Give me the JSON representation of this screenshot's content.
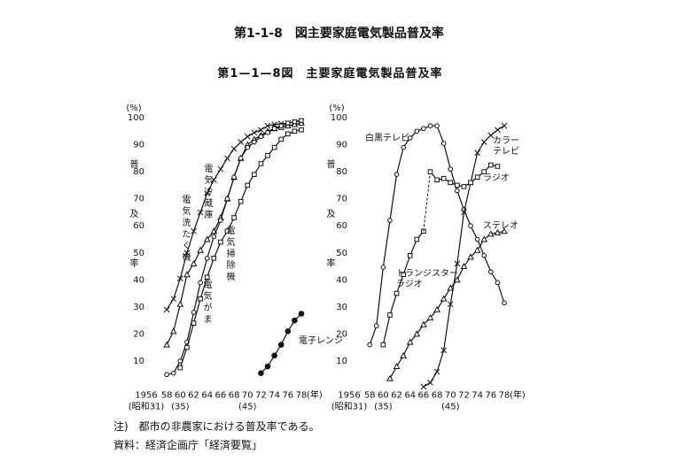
{
  "title": "第1-1-8　図主要家庭電気製品普及率",
  "figure_title": "第1—1—8図　主要家庭電気製品普及率",
  "chart_data": [
    {
      "type": "line",
      "xlim": [
        1956,
        1978
      ],
      "ylim": [
        0,
        100
      ],
      "yticks": [
        10,
        20,
        30,
        40,
        50,
        60,
        70,
        80,
        90,
        100
      ],
      "y_unit": "(%)",
      "y_label": "普及率",
      "xticks": [
        1956,
        {
          "value": 1958,
          "label": "58"
        },
        {
          "value": 1960,
          "label": "60"
        },
        {
          "value": 1962,
          "label": "62"
        },
        {
          "value": 1964,
          "label": "64"
        },
        {
          "value": 1966,
          "label": "66"
        },
        {
          "value": 1968,
          "label": "68"
        },
        {
          "value": 1970,
          "label": "70"
        },
        {
          "value": 1972,
          "label": "72"
        },
        {
          "value": 1974,
          "label": "74"
        },
        {
          "value": 1976,
          "label": "76"
        },
        {
          "value": 1978,
          "label": "78"
        }
      ],
      "x_unit": "(年)",
      "x_era_labels": [
        {
          "value": 1956,
          "label": "(昭和31)"
        },
        {
          "value": 1960,
          "label": "(35)"
        },
        {
          "value": 1970,
          "label": "(45)"
        }
      ],
      "series": [
        {
          "name": "電気洗たく機",
          "marker": "x",
          "color": "#111",
          "x": [
            1958,
            1959,
            1960,
            1961,
            1962,
            1963,
            1964,
            1965,
            1966,
            1967,
            1968,
            1969,
            1970,
            1971,
            1972,
            1973,
            1974,
            1975,
            1976,
            1977,
            1978
          ],
          "values": [
            29,
            33,
            40.5,
            50,
            58,
            65,
            72,
            77,
            81,
            85,
            88.5,
            91,
            93,
            94.5,
            95.5,
            97,
            97.5,
            97.8,
            98,
            98.4,
            98.8
          ]
        },
        {
          "name": "電気がま",
          "marker": "triangle",
          "color": "#111",
          "x": [
            1958,
            1959,
            1960,
            1961,
            1962,
            1963,
            1964,
            1965,
            1966,
            1967,
            1968,
            1969,
            1970,
            1971,
            1972,
            1973,
            1974,
            1975,
            1976,
            1977,
            1978
          ],
          "values": [
            16,
            21,
            31,
            42,
            46,
            51,
            55,
            58,
            63,
            70,
            78,
            85,
            90,
            92,
            93.5,
            95,
            96,
            96.5,
            97,
            97.5,
            98
          ]
        },
        {
          "name": "電気冷蔵庫",
          "marker": "circle",
          "color": "#111",
          "x": [
            1958,
            1959,
            1960,
            1961,
            1962,
            1963,
            1964,
            1965,
            1966,
            1967,
            1968,
            1969,
            1970,
            1971,
            1972,
            1973,
            1974,
            1975,
            1976,
            1977,
            1978
          ],
          "values": [
            5,
            5.5,
            10,
            17,
            28,
            39,
            48,
            56,
            62,
            70,
            78,
            85,
            89,
            91,
            93,
            94.5,
            96,
            97,
            98,
            98.5,
            99
          ]
        },
        {
          "name": "電気掃除機",
          "marker": "square",
          "color": "#111",
          "x": [
            1960,
            1961,
            1962,
            1963,
            1964,
            1965,
            1966,
            1967,
            1968,
            1969,
            1970,
            1971,
            1972,
            1973,
            1974,
            1975,
            1976,
            1977,
            1978
          ],
          "values": [
            7.5,
            15,
            24,
            33,
            41,
            48,
            54,
            58,
            63,
            69,
            75,
            79,
            83,
            86,
            89,
            92,
            94,
            95,
            95.5
          ]
        },
        {
          "name": "電子レンジ",
          "marker": "filled-circle",
          "color": "#111",
          "x": [
            1972,
            1973,
            1974,
            1975,
            1976,
            1977,
            1978
          ],
          "values": [
            5.5,
            8,
            12,
            16,
            21,
            25,
            27.5
          ]
        }
      ]
    },
    {
      "type": "line",
      "xlim": [
        1956,
        1978
      ],
      "ylim": [
        0,
        100
      ],
      "yticks": [
        10,
        20,
        30,
        40,
        50,
        60,
        70,
        80,
        90,
        100
      ],
      "y_unit": "(%)",
      "y_label": "普及率",
      "xticks": [
        1956,
        {
          "value": 1958,
          "label": "58"
        },
        {
          "value": 1960,
          "label": "60"
        },
        {
          "value": 1962,
          "label": "62"
        },
        {
          "value": 1964,
          "label": "64"
        },
        {
          "value": 1966,
          "label": "66"
        },
        {
          "value": 1968,
          "label": "68"
        },
        {
          "value": 1970,
          "label": "70"
        },
        {
          "value": 1972,
          "label": "72"
        },
        {
          "value": 1974,
          "label": "74"
        },
        {
          "value": 1976,
          "label": "76"
        },
        {
          "value": 1978,
          "label": "78"
        }
      ],
      "x_unit": "(年)",
      "x_era_labels": [
        {
          "value": 1956,
          "label": "(昭和31)"
        },
        {
          "value": 1960,
          "label": "(35)"
        },
        {
          "value": 1970,
          "label": "(45)"
        }
      ],
      "series": [
        {
          "name": "白黒テレビ",
          "marker": "circle",
          "color": "#111",
          "x": [
            1958,
            1959,
            1960,
            1961,
            1962,
            1963,
            1964,
            1965,
            1966,
            1967,
            1968,
            1969,
            1970,
            1971,
            1972,
            1973,
            1974,
            1975,
            1976,
            1977,
            1978
          ],
          "values": [
            16,
            23,
            44.7,
            62,
            79,
            89,
            92.5,
            95,
            96,
            97,
            97,
            90.5,
            81,
            73,
            66,
            60,
            55,
            49,
            43,
            39,
            31.5
          ]
        },
        {
          "name": "カラーテレビ",
          "marker": "x",
          "color": "#111",
          "x": [
            1966,
            1967,
            1968,
            1969,
            1970,
            1971,
            1972,
            1973,
            1974,
            1975,
            1976,
            1977,
            1978
          ],
          "values": [
            0.5,
            2,
            6,
            14,
            31,
            46,
            65,
            76,
            87,
            91,
            93.5,
            95.5,
            97
          ]
        },
        {
          "name": "トランジスターラジオ",
          "marker": "square",
          "color": "#111",
          "x": [
            1960,
            1961,
            1962,
            1963,
            1964,
            1965,
            1966
          ],
          "values": [
            16,
            27,
            35,
            42,
            49,
            55,
            58
          ]
        },
        {
          "name": "ラジオ",
          "marker": "square",
          "color": "#111",
          "join_previous_style": "dashed",
          "x": [
            1967,
            1968,
            1969,
            1970,
            1971,
            1972,
            1973,
            1974,
            1975,
            1976,
            1977
          ],
          "values": [
            80,
            77,
            77.5,
            76,
            75,
            74.5,
            76,
            78,
            80,
            82.5,
            82
          ]
        },
        {
          "name": "ステレオ",
          "marker": "triangle",
          "color": "#111",
          "x": [
            1961,
            1962,
            1963,
            1964,
            1965,
            1966,
            1967,
            1968,
            1969,
            1970,
            1971,
            1972,
            1973,
            1974,
            1975,
            1976,
            1977,
            1978
          ],
          "values": [
            3.5,
            8,
            12,
            17,
            20,
            23.5,
            26,
            29,
            33,
            37,
            40,
            45,
            48.5,
            51,
            55,
            57,
            57.5,
            58
          ]
        }
      ]
    }
  ],
  "notes": [
    "注)　都市の非農家における普及率である。",
    "資料：経済企画庁「経済要覧」"
  ]
}
